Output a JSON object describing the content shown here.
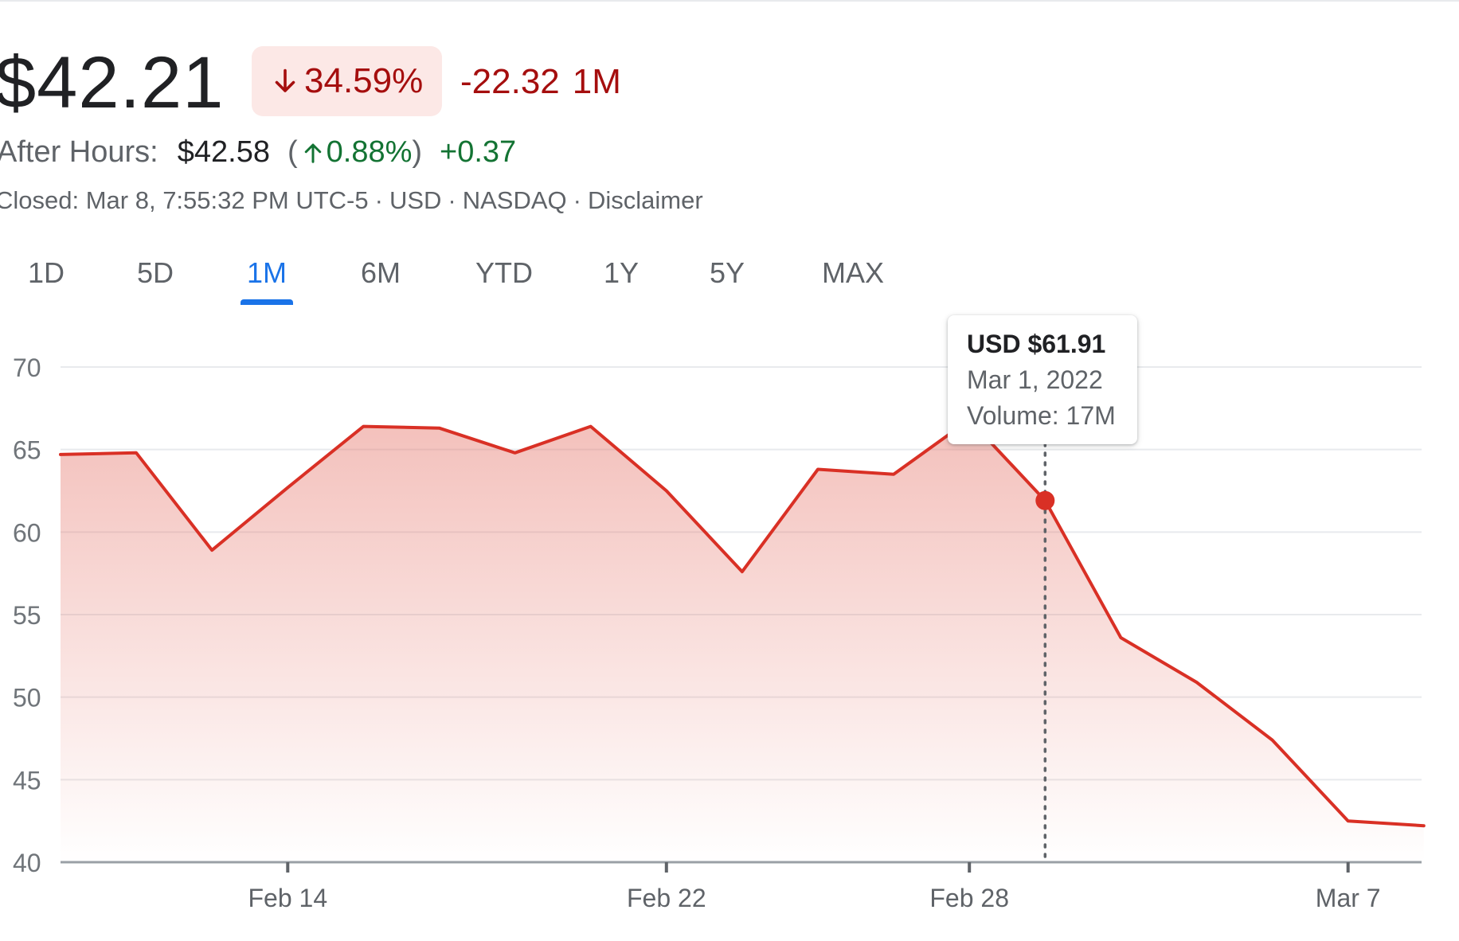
{
  "quote": {
    "price": "$42.21",
    "change_percent": "34.59%",
    "change_direction": "down",
    "change_value": "-22.32",
    "change_period": "1M",
    "down_color": "#a50e0e",
    "down_bg": "#fce8e6"
  },
  "after_hours": {
    "label": "After Hours:",
    "price": "$42.58",
    "open_paren": "(",
    "change_percent": "0.88%",
    "close_paren": ")",
    "change_direction": "up",
    "change_value": "+0.37",
    "up_color": "#137333"
  },
  "meta": {
    "closed": "Closed: Mar 8, 7:55:32 PM UTC-5",
    "currency": "USD",
    "exchange": "NASDAQ",
    "disclaimer": "Disclaimer",
    "separator": "·"
  },
  "ranges": {
    "items": [
      "1D",
      "5D",
      "1M",
      "6M",
      "YTD",
      "1Y",
      "5Y",
      "MAX"
    ],
    "selected": "1M",
    "accent": "#1a73e8"
  },
  "tooltip": {
    "price": "USD $61.91",
    "date": "Mar 1, 2022",
    "volume": "Volume: 17M"
  },
  "chart_data": {
    "type": "area",
    "title": "",
    "xlabel": "",
    "ylabel": "",
    "ylim": [
      40,
      70
    ],
    "yticks": [
      70,
      65,
      60,
      55,
      50,
      45,
      40
    ],
    "x_ticks": [
      "Feb 14",
      "Feb 22",
      "Feb 28",
      "Mar 7"
    ],
    "grid": true,
    "line_color": "#d93025",
    "series": [
      {
        "dates": [
          "Feb 9",
          "Feb 10",
          "Feb 11",
          "Feb 14",
          "Feb 15",
          "Feb 16",
          "Feb 17",
          "Feb 18",
          "Feb 22",
          "Feb 23",
          "Feb 24",
          "Feb 25",
          "Feb 28",
          "Mar 1",
          "Mar 2",
          "Mar 3",
          "Mar 4",
          "Mar 7",
          "Mar 8"
        ],
        "values": [
          64.7,
          64.8,
          58.9,
          62.7,
          66.4,
          66.3,
          64.8,
          66.4,
          62.5,
          57.6,
          63.8,
          63.5,
          66.8,
          61.91,
          53.6,
          50.9,
          47.4,
          42.5,
          42.21
        ]
      }
    ],
    "highlight": {
      "date": "Mar 1",
      "value": 61.91
    }
  }
}
